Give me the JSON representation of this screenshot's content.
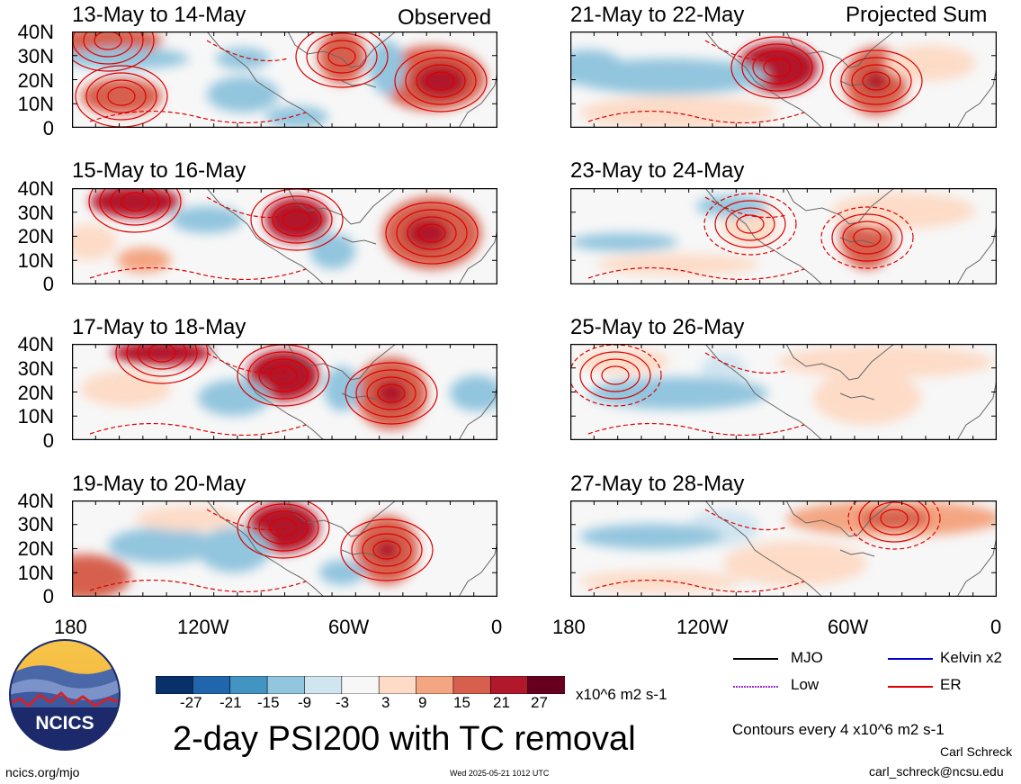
{
  "header": {
    "observed_label": "Observed",
    "projected_label": "Projected Sum"
  },
  "panels": {
    "left": [
      {
        "title": "13-May to 14-May"
      },
      {
        "title": "15-May to 16-May"
      },
      {
        "title": "17-May to 18-May"
      },
      {
        "title": "19-May to 20-May"
      }
    ],
    "right": [
      {
        "title": "21-May to 22-May"
      },
      {
        "title": "23-May to 24-May"
      },
      {
        "title": "25-May to 26-May"
      },
      {
        "title": "27-May to 28-May"
      }
    ]
  },
  "axes": {
    "lat_labels": [
      "40N",
      "30N",
      "20N",
      "10N",
      "0"
    ],
    "lon_labels": [
      "180",
      "120W",
      "60W",
      "0"
    ]
  },
  "colorbar": {
    "colors": [
      "#08306b",
      "#2166ac",
      "#4393c3",
      "#92c5de",
      "#d1e5f0",
      "#f7f7f7",
      "#fddbc7",
      "#f4a582",
      "#d6604d",
      "#b2182b",
      "#67001f"
    ],
    "labels": [
      "-27",
      "-21",
      "-15",
      "-9",
      "-3",
      "3",
      "9",
      "15",
      "21",
      "27"
    ],
    "units": "x10^6 m2 s-1"
  },
  "legend": {
    "items": [
      {
        "label": "MJO",
        "color": "#000000"
      },
      {
        "label": "Kelvin x2",
        "color": "#0000cc"
      },
      {
        "label": "Low",
        "color": "#9933cc"
      },
      {
        "label": "ER",
        "color": "#dd0000"
      }
    ],
    "contour_note": "Contours every 4 x10^6 m2 s-1"
  },
  "footer": {
    "main_title": "2-day PSI200 with TC removal",
    "logo_text": "NCICS",
    "url": "ncics.org/mjo",
    "timestamp": "Wed 2025-05-21 1012 UTC",
    "author": "Carl Schreck",
    "email": "carl_schreck@ncsu.edu"
  }
}
